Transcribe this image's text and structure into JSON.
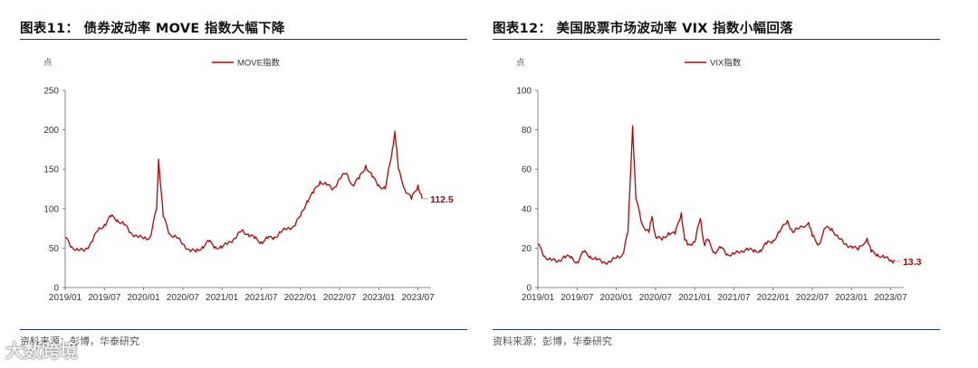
{
  "charts": [
    {
      "title": "图表11： 债券波动率 MOVE 指数大幅下降",
      "source": "资料来源：彭博，华泰研究"
    },
    {
      "title": "图表12： 美国股票市场波动率 VIX 指数小幅回落",
      "source": "资料来源：彭博，华泰研究"
    }
  ],
  "watermark": "大数跨境",
  "chart_data": [
    {
      "type": "line",
      "unit": "点",
      "ylim": [
        0,
        250
      ],
      "yticks": [
        0,
        50,
        100,
        150,
        200,
        250
      ],
      "xlim": [
        "2019-01",
        "2023-09"
      ],
      "xticks": [
        "2019/01",
        "2019/07",
        "2020/01",
        "2020/07",
        "2021/01",
        "2021/07",
        "2022/01",
        "2022/07",
        "2023/01",
        "2023/07"
      ],
      "grid": false,
      "legend": "top-center",
      "end_label": "112.5",
      "color": "#c00000",
      "series": [
        {
          "name": "MOVE指数",
          "x": [
            "2019-01-01",
            "2019-02-01",
            "2019-03-01",
            "2019-04-01",
            "2019-05-01",
            "2019-06-01",
            "2019-07-01",
            "2019-08-01",
            "2019-09-01",
            "2019-10-01",
            "2019-11-01",
            "2019-12-01",
            "2020-01-01",
            "2020-02-01",
            "2020-03-01",
            "2020-03-10",
            "2020-04-01",
            "2020-05-01",
            "2020-06-01",
            "2020-07-01",
            "2020-08-01",
            "2020-09-01",
            "2020-10-01",
            "2020-11-01",
            "2020-12-01",
            "2021-01-01",
            "2021-02-01",
            "2021-03-01",
            "2021-04-01",
            "2021-05-01",
            "2021-06-01",
            "2021-07-01",
            "2021-08-01",
            "2021-09-01",
            "2021-10-01",
            "2021-11-01",
            "2021-12-01",
            "2022-01-01",
            "2022-02-01",
            "2022-03-01",
            "2022-04-01",
            "2022-05-01",
            "2022-06-01",
            "2022-07-01",
            "2022-08-01",
            "2022-09-01",
            "2022-10-01",
            "2022-11-01",
            "2022-12-01",
            "2023-01-01",
            "2023-02-01",
            "2023-03-01",
            "2023-03-15",
            "2023-04-01",
            "2023-05-01",
            "2023-06-01",
            "2023-07-01",
            "2023-07-20"
          ],
          "values": [
            63,
            52,
            47,
            47,
            58,
            72,
            80,
            90,
            86,
            80,
            70,
            65,
            62,
            64,
            100,
            163,
            90,
            68,
            64,
            55,
            48,
            45,
            52,
            58,
            52,
            50,
            58,
            62,
            72,
            68,
            62,
            58,
            62,
            64,
            70,
            75,
            78,
            90,
            110,
            120,
            135,
            130,
            125,
            138,
            145,
            130,
            138,
            155,
            140,
            130,
            125,
            170,
            198,
            150,
            125,
            112,
            130,
            112.5
          ]
        }
      ]
    },
    {
      "type": "line",
      "unit": "点",
      "ylim": [
        0,
        100
      ],
      "yticks": [
        0,
        20,
        40,
        60,
        80,
        100
      ],
      "xlim": [
        "2019-01",
        "2023-09"
      ],
      "xticks": [
        "2019/01",
        "2019/07",
        "2020/01",
        "2020/07",
        "2021/01",
        "2021/07",
        "2022/01",
        "2022/07",
        "2023/01",
        "2023/07"
      ],
      "grid": false,
      "legend": "top-center",
      "end_label": "13.3",
      "color": "#c00000",
      "series": [
        {
          "name": "VIX指数",
          "x": [
            "2019-01-01",
            "2019-02-01",
            "2019-03-01",
            "2019-04-01",
            "2019-05-01",
            "2019-06-01",
            "2019-07-01",
            "2019-08-01",
            "2019-09-01",
            "2019-10-01",
            "2019-11-01",
            "2019-12-01",
            "2020-01-01",
            "2020-02-01",
            "2020-02-25",
            "2020-03-16",
            "2020-04-01",
            "2020-05-01",
            "2020-06-01",
            "2020-06-15",
            "2020-07-01",
            "2020-08-01",
            "2020-09-01",
            "2020-10-01",
            "2020-10-30",
            "2020-11-15",
            "2020-12-01",
            "2021-01-01",
            "2021-01-27",
            "2021-02-15",
            "2021-03-01",
            "2021-04-01",
            "2021-05-01",
            "2021-06-01",
            "2021-07-01",
            "2021-08-01",
            "2021-09-01",
            "2021-10-01",
            "2021-11-01",
            "2021-12-01",
            "2022-01-01",
            "2022-02-01",
            "2022-03-07",
            "2022-04-01",
            "2022-05-01",
            "2022-06-15",
            "2022-07-01",
            "2022-08-01",
            "2022-09-01",
            "2022-10-01",
            "2022-11-01",
            "2022-12-01",
            "2023-01-01",
            "2023-02-01",
            "2023-03-13",
            "2023-04-01",
            "2023-05-01",
            "2023-06-01",
            "2023-07-01",
            "2023-07-20"
          ],
          "values": [
            22,
            16,
            14,
            13,
            16,
            15,
            13,
            18,
            16,
            14,
            13,
            13,
            15,
            17,
            28,
            82,
            45,
            32,
            28,
            36,
            26,
            24,
            28,
            27,
            38,
            24,
            22,
            23,
            35,
            22,
            24,
            18,
            20,
            17,
            17,
            18,
            20,
            18,
            19,
            22,
            24,
            28,
            34,
            28,
            30,
            33,
            26,
            22,
            30,
            30,
            25,
            22,
            21,
            19,
            25,
            18,
            17,
            15,
            14,
            13.3
          ]
        }
      ]
    }
  ]
}
